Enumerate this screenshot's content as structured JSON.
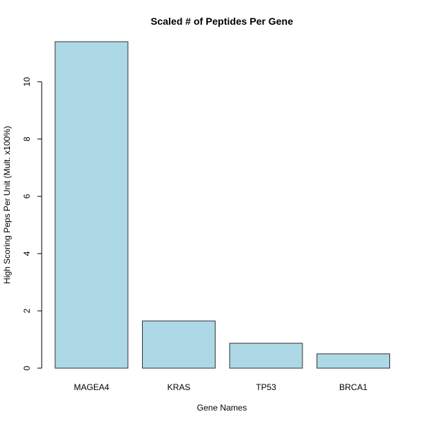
{
  "chart_data": {
    "type": "bar",
    "title": "Scaled # of Peptides Per Gene",
    "xlabel": "Gene Names",
    "ylabel": "High Scoring Peps Per Unit (Mult. x100%)",
    "categories": [
      "MAGEA4",
      "KRAS",
      "TP53",
      "BRCA1"
    ],
    "values": [
      11.4,
      1.65,
      0.87,
      0.5
    ],
    "ylim": [
      0,
      11.4
    ],
    "yticks": [
      0,
      2,
      4,
      6,
      8,
      10
    ],
    "bar_color": "#add8e6",
    "grid": false,
    "legend": "none"
  }
}
